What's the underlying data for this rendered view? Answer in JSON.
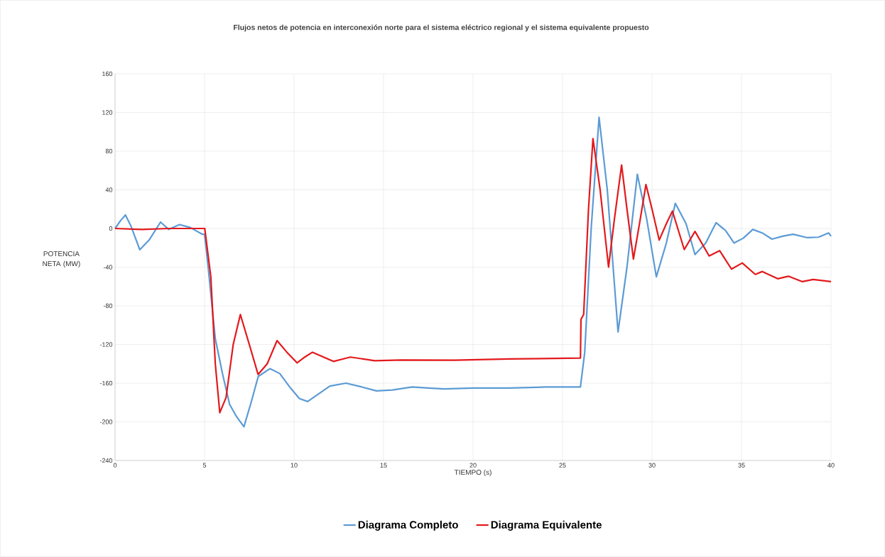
{
  "chart_data": {
    "type": "line",
    "title": "Flujos netos de potencia en interconexión norte para el sistema eléctrico regional y el sistema equivalente propuesto",
    "xlabel": "TIEMPO (s)",
    "ylabel": "POTENCIA NETA (MW)",
    "xlim": [
      0,
      40
    ],
    "ylim": [
      -240,
      160
    ],
    "xticks": [
      0,
      5,
      10,
      15,
      20,
      25,
      30,
      35,
      40
    ],
    "yticks": [
      -240,
      -200,
      -160,
      -120,
      -80,
      -40,
      0,
      40,
      80,
      120,
      160
    ],
    "grid": true,
    "legend": "bottom",
    "series": [
      {
        "name": "Diagrama Completo",
        "color": "#5b9bd5",
        "x": [
          0,
          0.3,
          0.58,
          0.9,
          1.38,
          1.9,
          2.54,
          3.0,
          3.6,
          4.2,
          4.88,
          5.0,
          5.2,
          5.6,
          6.0,
          6.4,
          6.8,
          7.2,
          7.6,
          8.0,
          8.65,
          9.2,
          9.8,
          10.3,
          10.76,
          11.3,
          12.0,
          12.9,
          13.8,
          14.6,
          15.5,
          16.6,
          17.5,
          18.4,
          20,
          22,
          24,
          26.0,
          26.24,
          26.6,
          27.04,
          27.5,
          28.1,
          28.6,
          29.18,
          29.7,
          30.24,
          30.8,
          31.3,
          31.9,
          32.4,
          33.0,
          33.58,
          34.1,
          34.58,
          35.1,
          35.63,
          36.2,
          36.7,
          37.3,
          37.88,
          38.68,
          39.3,
          39.87,
          40
        ],
        "values": [
          0,
          8,
          14,
          2,
          -22,
          -12,
          6.6,
          -1,
          4,
          1,
          -6,
          -6,
          -40,
          -114,
          -150,
          -182,
          -195,
          -205,
          -180,
          -153,
          -145,
          -150,
          -165,
          -176,
          -179,
          -172,
          -163,
          -160,
          -164,
          -168,
          -167,
          -164,
          -165,
          -166,
          -165,
          -165,
          -164,
          -164,
          -128,
          0,
          115,
          40,
          -107,
          -40,
          56,
          10,
          -50,
          -15,
          26,
          5,
          -27,
          -15,
          6,
          -2,
          -15,
          -10,
          -1,
          -5,
          -11,
          -8,
          -6,
          -9.5,
          -9,
          -4.6,
          -8
        ]
      },
      {
        "name": "Diagrama Equivalente",
        "color": "#e3191c",
        "x": [
          0,
          1.5,
          3,
          4.99,
          5.01,
          5.35,
          5.6,
          5.85,
          6.2,
          6.6,
          7.0,
          7.5,
          7.99,
          8.5,
          9.05,
          9.6,
          10.17,
          10.6,
          11.03,
          12.2,
          13.15,
          14.5,
          16,
          18.98,
          22,
          26.0,
          26.03,
          26.18,
          26.45,
          26.7,
          27.1,
          27.57,
          27.9,
          28.3,
          28.6,
          28.96,
          29.3,
          29.66,
          30.0,
          30.4,
          30.8,
          31.14,
          31.8,
          32.4,
          33.19,
          33.78,
          34.44,
          35.04,
          35.77,
          36.16,
          37.02,
          37.62,
          38.4,
          39.0,
          40
        ],
        "values": [
          0,
          -1,
          0,
          0,
          0,
          -50,
          -140,
          -190.6,
          -175,
          -120,
          -89,
          -120,
          -151,
          -140,
          -116,
          -128,
          -139,
          -133,
          -128,
          -137.5,
          -133,
          -136.8,
          -136,
          -136.3,
          -135,
          -134,
          -94,
          -89,
          20,
          93,
          40,
          -40,
          10,
          65.6,
          20,
          -31.6,
          5,
          45.5,
          20,
          -12,
          5,
          18,
          -21.8,
          -3,
          -28.4,
          -23,
          -42,
          -35.7,
          -47.5,
          -44.5,
          -52,
          -49.4,
          -55,
          -52.8,
          -55
        ]
      }
    ]
  }
}
